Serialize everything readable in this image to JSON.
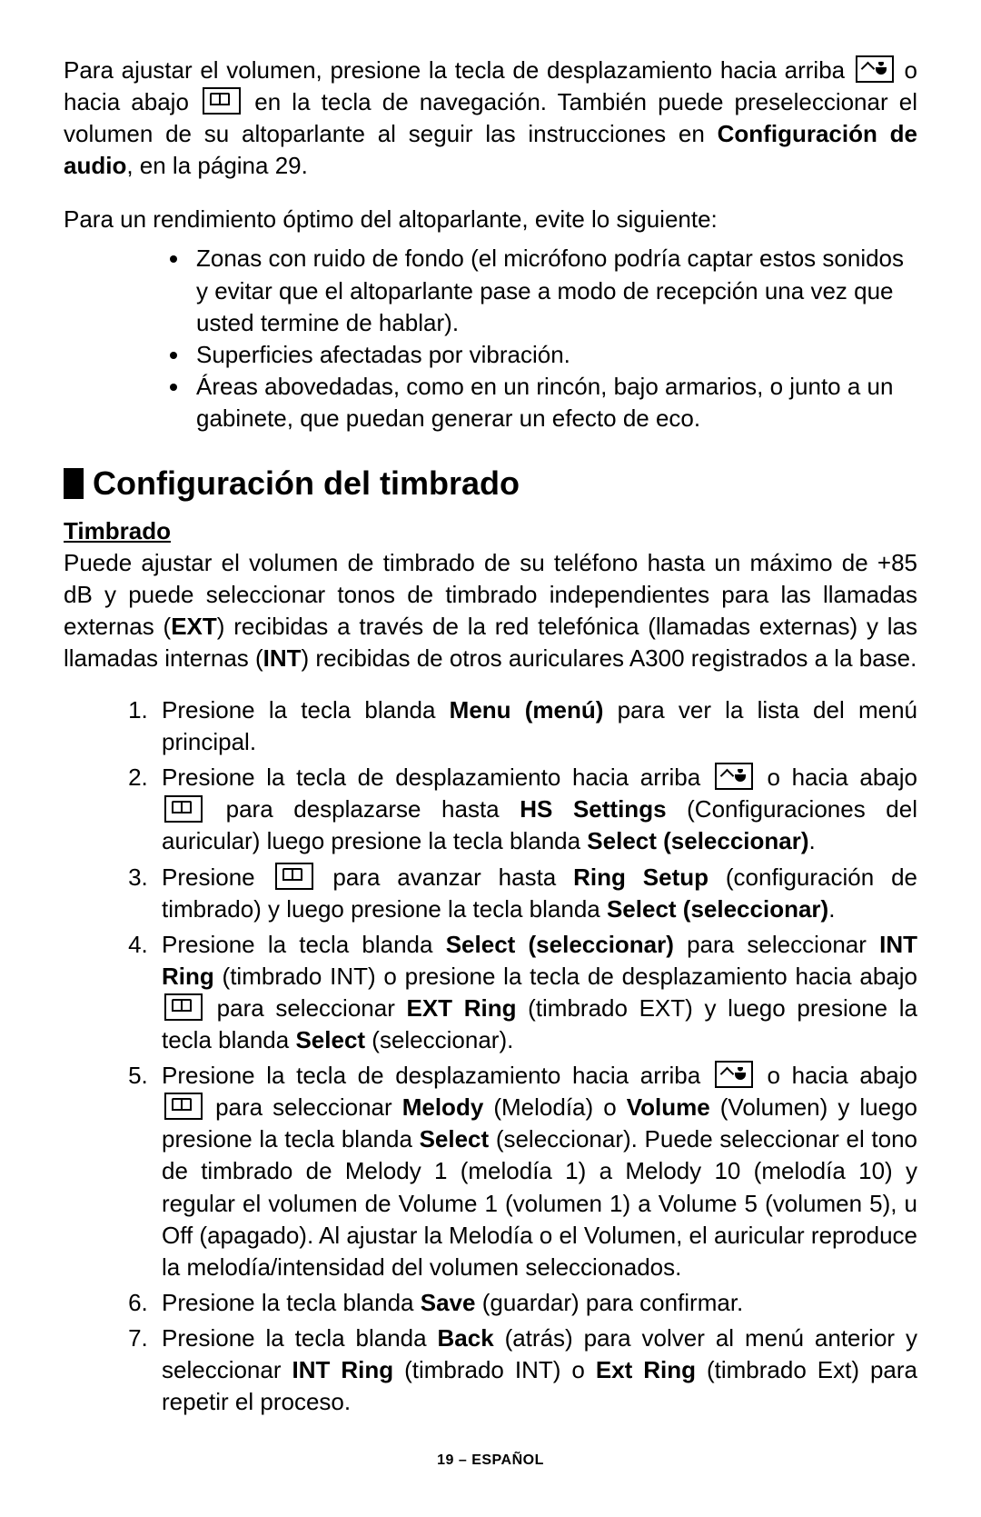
{
  "intro": {
    "p1_a": "Para ajustar el volumen, presione la tecla de desplazamiento hacia arriba ",
    "p1_b": " o hacia abajo",
    "p1_c": " en la tecla de navegación.  También puede preseleccionar el volumen de su altoparlante al seguir las instrucciones en ",
    "p1_bold": "Configuración de audio",
    "p1_d": ", en la página 29.",
    "p2": "Para un rendimiento óptimo del altoparlante, evite lo siguiente:",
    "bullets": [
      "Zonas con ruido de fondo (el micrófono podría captar estos sonidos y evitar que el altoparlante pase a modo de recepción una vez que usted termine de hablar).",
      "Superficies afectadas por vibración.",
      "Áreas abovedadas, como en un rincón, bajo armarios, o junto a un gabinete, que puedan generar un efecto de eco."
    ]
  },
  "section": {
    "title": "Configuración del timbrado",
    "sub": "Timbrado",
    "desc_a": "Puede ajustar el volumen de timbrado de su teléfono hasta un máximo de +85 dB y puede seleccionar tonos de timbrado independientes para las llamadas externas (",
    "desc_ext": "EXT",
    "desc_b": ") recibidas a través de la red telefónica (llamadas externas) y las llamadas internas (",
    "desc_int": "INT",
    "desc_c": ") recibidas de otros auriculares A300 registrados a la base."
  },
  "steps": {
    "s1_a": "Presione la tecla blanda ",
    "s1_bold": "Menu (menú)",
    "s1_b": " para ver la lista del menú principal.",
    "s2_a": "Presione la tecla de desplazamiento hacia arriba",
    "s2_b": " o hacia abajo ",
    "s2_c": " para desplazarse hasta ",
    "s2_bold1": "HS Settings",
    "s2_d": " (Configuraciones del auricular) luego presione la tecla blanda ",
    "s2_bold2": "Select (seleccionar)",
    "s2_e": ".",
    "s3_a": "Presione  ",
    "s3_b": "para avanzar hasta ",
    "s3_bold1": "Ring Setup",
    "s3_c": "  (configuración de timbrado) y luego presione la tecla blanda ",
    "s3_bold2": "Select (seleccionar)",
    "s3_d": ".",
    "s4_a": "Presione la tecla blanda ",
    "s4_bold1": "Select (seleccionar)",
    "s4_b": " para seleccionar ",
    "s4_bold2": "INT Ring",
    "s4_c": "  (timbrado INT) o presione la tecla de desplazamiento hacia abajo",
    "s4_d": " para seleccionar ",
    "s4_bold3": "EXT Ring",
    "s4_e": " (timbrado EXT) y luego presione la tecla blanda ",
    "s4_bold4": "Select",
    "s4_f": " (seleccionar).",
    "s5_a": "Presione la tecla de desplazamiento hacia arriba ",
    "s5_b": " o hacia abajo ",
    "s5_c": " para seleccionar ",
    "s5_bold1": "Melody",
    "s5_d": " (Melodía) o ",
    "s5_bold2": "Volume",
    "s5_e": " (Volumen) y luego presione la tecla blanda ",
    "s5_bold3": "Select",
    "s5_f": " (seleccionar).  Puede seleccionar el tono de timbrado de Melody 1 (melodía 1) a Melody 10 (melodía 10) y  regular el volumen de Volume 1 (volumen 1) a Volume 5 (volumen 5), u Off (apagado).  Al ajustar la Melodía o el Volumen, el auricular reproduce la melodía/intensidad del volumen seleccionados.",
    "s6_a": "Presione la tecla blanda ",
    "s6_bold": "Save",
    "s6_b": " (guardar) para confirmar.",
    "s7_a": "Presione la tecla blanda ",
    "s7_bold1": "Back",
    "s7_b": " (atrás) para volver al menú anterior y seleccionar ",
    "s7_bold2": "INT Ring",
    "s7_c": " (timbrado INT) o ",
    "s7_bold3": "Ext Ring",
    "s7_d": "  (timbrado Ext) para repetir el proceso."
  },
  "footer": "19 – ESPAÑOL"
}
